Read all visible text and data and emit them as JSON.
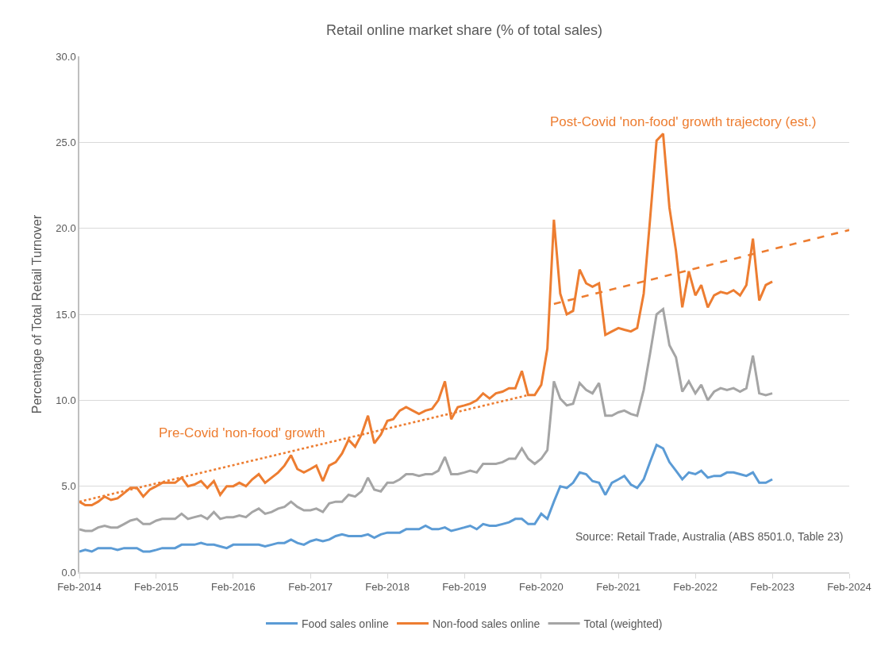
{
  "chart_data": {
    "type": "line",
    "title": "Retail online market share (% of total sales)",
    "ylabel": "Percentage of Total Retail Turnover",
    "x": [
      "2014-02",
      "2014-03",
      "2014-04",
      "2014-05",
      "2014-06",
      "2014-07",
      "2014-08",
      "2014-09",
      "2014-10",
      "2014-11",
      "2014-12",
      "2015-01",
      "2015-02",
      "2015-03",
      "2015-04",
      "2015-05",
      "2015-06",
      "2015-07",
      "2015-08",
      "2015-09",
      "2015-10",
      "2015-11",
      "2015-12",
      "2016-01",
      "2016-02",
      "2016-03",
      "2016-04",
      "2016-05",
      "2016-06",
      "2016-07",
      "2016-08",
      "2016-09",
      "2016-10",
      "2016-11",
      "2016-12",
      "2017-01",
      "2017-02",
      "2017-03",
      "2017-04",
      "2017-05",
      "2017-06",
      "2017-07",
      "2017-08",
      "2017-09",
      "2017-10",
      "2017-11",
      "2017-12",
      "2018-01",
      "2018-02",
      "2018-03",
      "2018-04",
      "2018-05",
      "2018-06",
      "2018-07",
      "2018-08",
      "2018-09",
      "2018-10",
      "2018-11",
      "2018-12",
      "2019-01",
      "2019-02",
      "2019-03",
      "2019-04",
      "2019-05",
      "2019-06",
      "2019-07",
      "2019-08",
      "2019-09",
      "2019-10",
      "2019-11",
      "2019-12",
      "2020-01",
      "2020-02",
      "2020-03",
      "2020-04",
      "2020-05",
      "2020-06",
      "2020-07",
      "2020-08",
      "2020-09",
      "2020-10",
      "2020-11",
      "2020-12",
      "2021-01",
      "2021-02",
      "2021-03",
      "2021-04",
      "2021-05",
      "2021-06",
      "2021-07",
      "2021-08",
      "2021-09",
      "2021-10",
      "2021-11",
      "2021-12",
      "2022-01",
      "2022-02",
      "2022-03",
      "2022-04",
      "2022-05",
      "2022-06",
      "2022-07",
      "2022-08",
      "2022-09",
      "2022-10",
      "2022-11",
      "2022-12",
      "2023-01",
      "2023-02"
    ],
    "series": [
      {
        "name": "Food sales online",
        "color": "#5b9bd5",
        "values": [
          1.2,
          1.3,
          1.2,
          1.4,
          1.4,
          1.4,
          1.3,
          1.4,
          1.4,
          1.4,
          1.2,
          1.2,
          1.3,
          1.4,
          1.4,
          1.4,
          1.6,
          1.6,
          1.6,
          1.7,
          1.6,
          1.6,
          1.5,
          1.4,
          1.6,
          1.6,
          1.6,
          1.6,
          1.6,
          1.5,
          1.6,
          1.7,
          1.7,
          1.9,
          1.7,
          1.6,
          1.8,
          1.9,
          1.8,
          1.9,
          2.1,
          2.2,
          2.1,
          2.1,
          2.1,
          2.2,
          2.0,
          2.2,
          2.3,
          2.3,
          2.3,
          2.5,
          2.5,
          2.5,
          2.7,
          2.5,
          2.5,
          2.6,
          2.4,
          2.5,
          2.6,
          2.7,
          2.5,
          2.8,
          2.7,
          2.7,
          2.8,
          2.9,
          3.1,
          3.1,
          2.8,
          2.8,
          3.4,
          3.1,
          4.1,
          5.0,
          4.9,
          5.2,
          5.8,
          5.7,
          5.3,
          5.2,
          4.5,
          5.2,
          5.4,
          5.6,
          5.1,
          4.9,
          5.4,
          6.4,
          7.4,
          7.2,
          6.4,
          5.9,
          5.4,
          5.8,
          5.7,
          5.9,
          5.5,
          5.6,
          5.6,
          5.8,
          5.8,
          5.7,
          5.6,
          5.8,
          5.2,
          5.2,
          5.4
        ]
      },
      {
        "name": "Non-food sales online",
        "color": "#ed7d31",
        "values": [
          4.1,
          3.9,
          3.9,
          4.1,
          4.4,
          4.2,
          4.3,
          4.6,
          4.9,
          4.9,
          4.4,
          4.8,
          5.0,
          5.2,
          5.2,
          5.2,
          5.5,
          5.0,
          5.1,
          5.3,
          4.9,
          5.3,
          4.5,
          5.0,
          5.0,
          5.2,
          5.0,
          5.4,
          5.7,
          5.2,
          5.5,
          5.8,
          6.2,
          6.8,
          6.0,
          5.8,
          6.0,
          6.2,
          5.3,
          6.2,
          6.4,
          6.9,
          7.7,
          7.3,
          8.0,
          9.1,
          7.5,
          8.0,
          8.8,
          8.9,
          9.4,
          9.6,
          9.4,
          9.2,
          9.4,
          9.5,
          10.0,
          11.1,
          8.9,
          9.6,
          9.7,
          9.8,
          10.0,
          10.4,
          10.1,
          10.4,
          10.5,
          10.7,
          10.7,
          11.7,
          10.3,
          10.3,
          10.9,
          13.0,
          20.5,
          16.2,
          15.0,
          15.2,
          17.6,
          16.8,
          16.6,
          16.8,
          13.8,
          14.0,
          14.2,
          14.1,
          14.0,
          14.2,
          16.2,
          20.5,
          25.1,
          25.5,
          21.2,
          18.7,
          15.4,
          17.5,
          16.1,
          16.7,
          15.4,
          16.1,
          16.3,
          16.2,
          16.4,
          16.1,
          16.7,
          19.4,
          15.8,
          16.7,
          16.9
        ]
      },
      {
        "name": "Total (weighted)",
        "color": "#a5a5a5",
        "values": [
          2.5,
          2.4,
          2.4,
          2.6,
          2.7,
          2.6,
          2.6,
          2.8,
          3.0,
          3.1,
          2.8,
          2.8,
          3.0,
          3.1,
          3.1,
          3.1,
          3.4,
          3.1,
          3.2,
          3.3,
          3.1,
          3.5,
          3.1,
          3.2,
          3.2,
          3.3,
          3.2,
          3.5,
          3.7,
          3.4,
          3.5,
          3.7,
          3.8,
          4.1,
          3.8,
          3.6,
          3.6,
          3.7,
          3.5,
          4.0,
          4.1,
          4.1,
          4.5,
          4.4,
          4.7,
          5.5,
          4.8,
          4.7,
          5.2,
          5.2,
          5.4,
          5.7,
          5.7,
          5.6,
          5.7,
          5.7,
          5.9,
          6.7,
          5.7,
          5.7,
          5.8,
          5.9,
          5.8,
          6.3,
          6.3,
          6.3,
          6.4,
          6.6,
          6.6,
          7.2,
          6.6,
          6.3,
          6.6,
          7.1,
          11.1,
          10.1,
          9.7,
          9.8,
          11.0,
          10.6,
          10.4,
          11.0,
          9.1,
          9.1,
          9.3,
          9.4,
          9.2,
          9.1,
          10.6,
          12.7,
          15.0,
          15.3,
          13.2,
          12.5,
          10.5,
          11.1,
          10.4,
          10.9,
          10.0,
          10.5,
          10.7,
          10.6,
          10.7,
          10.5,
          10.7,
          12.6,
          10.4,
          10.3,
          10.4
        ]
      },
      {
        "type": "line",
        "color": "#ed7d31",
        "line_style": "dotted",
        "x": [
          "2014-02",
          "2019-12"
        ],
        "values": [
          4.1,
          10.3
        ]
      },
      {
        "type": "line",
        "color": "#ed7d31",
        "line_style": "dashed",
        "x": [
          "2020-04",
          "2024-02"
        ],
        "values": [
          15.6,
          19.9
        ]
      }
    ],
    "annotations": [
      "Pre-Covid 'non-food' growth",
      "Post-Covid 'non-food' growth trajectory (est.)",
      "Source: Retail Trade, Australia (ABS 8501.0, Table 23)"
    ],
    "xlim": [
      "2014-02",
      "2024-02"
    ],
    "xticks": [
      {
        "value": "2014-02",
        "label": "Feb-2014"
      },
      {
        "value": "2015-02",
        "label": "Feb-2015"
      },
      {
        "value": "2016-02",
        "label": "Feb-2016"
      },
      {
        "value": "2017-02",
        "label": "Feb-2017"
      },
      {
        "value": "2018-02",
        "label": "Feb-2018"
      },
      {
        "value": "2019-02",
        "label": "Feb-2019"
      },
      {
        "value": "2020-02",
        "label": "Feb-2020"
      },
      {
        "value": "2021-02",
        "label": "Feb-2021"
      },
      {
        "value": "2022-02",
        "label": "Feb-2022"
      },
      {
        "value": "2023-02",
        "label": "Feb-2023"
      },
      {
        "value": "2024-02",
        "label": "Feb-2024"
      }
    ],
    "ylim": [
      0,
      30
    ],
    "yticks": [
      {
        "value": 0,
        "label": "0.0"
      },
      {
        "value": 5,
        "label": "5.0"
      },
      {
        "value": 10,
        "label": "10.0"
      },
      {
        "value": 15,
        "label": "15.0"
      },
      {
        "value": 20,
        "label": "20.0"
      },
      {
        "value": 25,
        "label": "25.0"
      },
      {
        "value": 30,
        "label": "30.0"
      }
    ],
    "grid": "y",
    "legend": "bottom"
  }
}
